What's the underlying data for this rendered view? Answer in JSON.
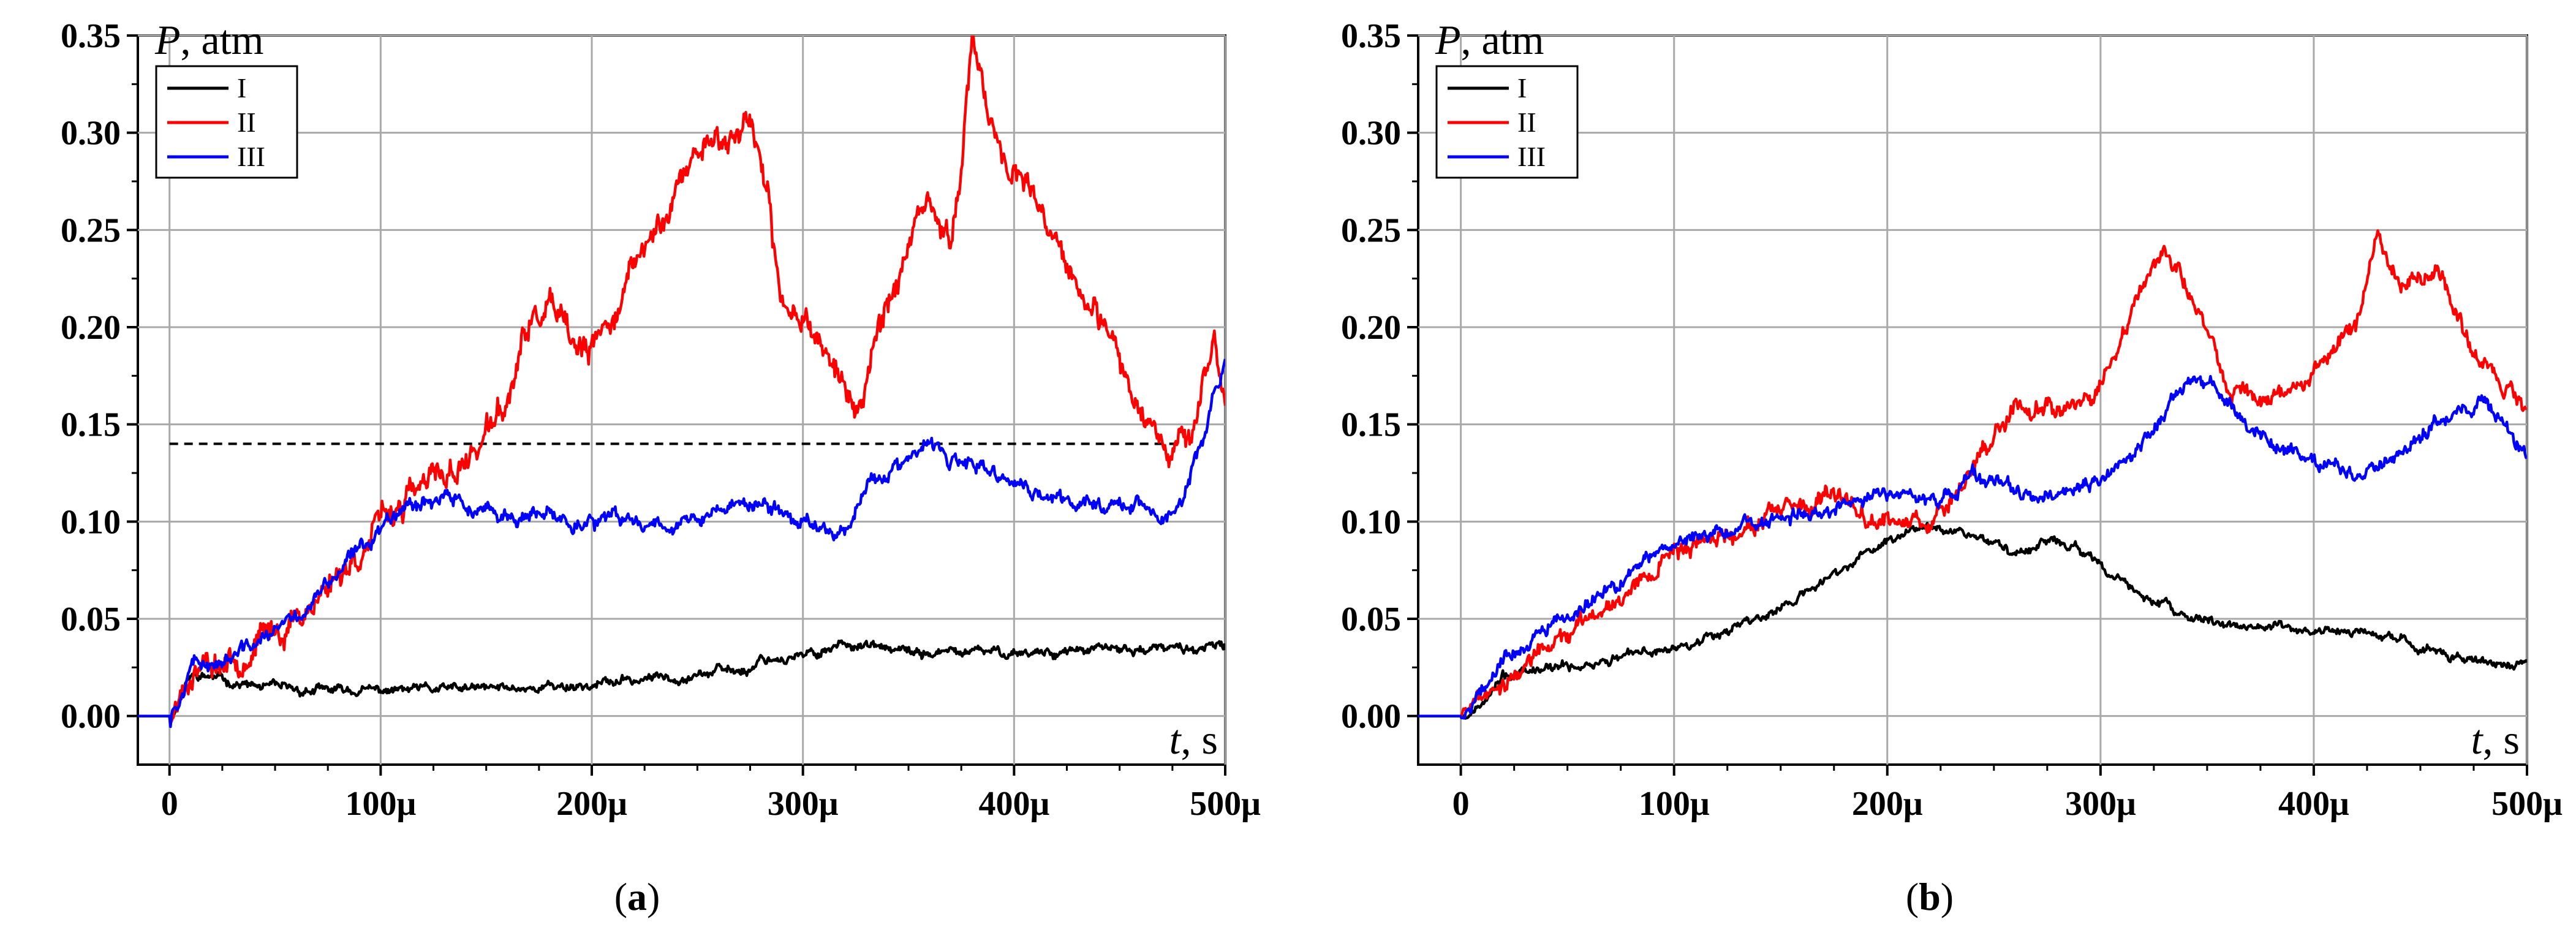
{
  "figure": {
    "panel_labels": [
      "(a)",
      "(b)"
    ]
  },
  "chart_data": [
    {
      "type": "line",
      "panel": "a",
      "ylabel_var": "P",
      "ylabel_unit": ", atm",
      "xlabel_var": "t",
      "xlabel_unit": ", s",
      "xlim": [
        -15,
        500
      ],
      "ylim": [
        -0.025,
        0.35
      ],
      "xticks": [
        0,
        100,
        200,
        300,
        400,
        500
      ],
      "xtick_labels": [
        "0",
        "100μ",
        "200μ",
        "300μ",
        "400μ",
        "500μ"
      ],
      "yticks": [
        0.0,
        0.05,
        0.1,
        0.15,
        0.2,
        0.25,
        0.3,
        0.35
      ],
      "ytick_labels": [
        "0.00",
        "0.05",
        "0.10",
        "0.15",
        "0.20",
        "0.25",
        "0.30",
        "0.35"
      ],
      "grid": true,
      "legend_position": "top-left",
      "reference_line": {
        "y": 0.14,
        "x_range": [
          0,
          480
        ],
        "style": "dashed"
      },
      "series": [
        {
          "name": "I",
          "color": "#000000",
          "noise": 0.0018,
          "seed": 11,
          "x": [
            -15,
            0,
            10,
            20,
            40,
            60,
            80,
            100,
            150,
            200,
            250,
            275,
            280,
            300,
            320,
            330,
            350,
            400,
            450,
            500
          ],
          "y": [
            0.0,
            0.0,
            0.02,
            0.02,
            0.015,
            0.013,
            0.013,
            0.013,
            0.014,
            0.016,
            0.022,
            0.024,
            0.03,
            0.03,
            0.038,
            0.036,
            0.032,
            0.033,
            0.034,
            0.035
          ]
        },
        {
          "name": "II",
          "color": "#ff0000",
          "noise": 0.0055,
          "seed": 23,
          "x": [
            -15,
            0,
            10,
            30,
            60,
            90,
            110,
            140,
            160,
            170,
            180,
            190,
            200,
            220,
            240,
            255,
            265,
            275,
            280,
            290,
            300,
            320,
            325,
            335,
            350,
            360,
            370,
            380,
            385,
            390,
            400,
            420,
            440,
            460,
            475,
            485,
            490,
            495,
            500
          ],
          "y": [
            0.0,
            0.0,
            0.025,
            0.03,
            0.05,
            0.085,
            0.11,
            0.13,
            0.16,
            0.2,
            0.21,
            0.19,
            0.185,
            0.23,
            0.27,
            0.3,
            0.295,
            0.31,
            0.285,
            0.21,
            0.21,
            0.17,
            0.15,
            0.2,
            0.24,
            0.26,
            0.24,
            0.34,
            0.33,
            0.3,
            0.28,
            0.24,
            0.2,
            0.16,
            0.14,
            0.15,
            0.17,
            0.19,
            0.16
          ]
        },
        {
          "name": "III",
          "color": "#0000ff",
          "noise": 0.003,
          "seed": 37,
          "x": [
            -15,
            0,
            10,
            30,
            60,
            90,
            110,
            130,
            150,
            200,
            250,
            270,
            290,
            300,
            320,
            330,
            340,
            350,
            360,
            370,
            380,
            400,
            420,
            440,
            460,
            470,
            480,
            485,
            490,
            495,
            500
          ],
          "y": [
            0.0,
            0.0,
            0.025,
            0.03,
            0.05,
            0.085,
            0.11,
            0.113,
            0.103,
            0.1,
            0.1,
            0.11,
            0.105,
            0.1,
            0.095,
            0.12,
            0.125,
            0.13,
            0.14,
            0.13,
            0.128,
            0.12,
            0.11,
            0.11,
            0.11,
            0.1,
            0.11,
            0.13,
            0.14,
            0.17,
            0.18
          ]
        }
      ]
    },
    {
      "type": "line",
      "panel": "b",
      "ylabel_var": "P",
      "ylabel_unit": ", atm",
      "xlabel_var": "t",
      "xlabel_unit": ", s",
      "xlim": [
        -20,
        500
      ],
      "ylim": [
        -0.025,
        0.35
      ],
      "xticks": [
        0,
        100,
        200,
        300,
        400,
        500
      ],
      "xtick_labels": [
        "0",
        "100μ",
        "200μ",
        "300μ",
        "400μ",
        "500μ"
      ],
      "yticks": [
        0.0,
        0.05,
        0.1,
        0.15,
        0.2,
        0.25,
        0.3,
        0.35
      ],
      "ytick_labels": [
        "0.00",
        "0.05",
        "0.10",
        "0.15",
        "0.20",
        "0.25",
        "0.30",
        "0.35"
      ],
      "grid": true,
      "legend_position": "top-left",
      "series": [
        {
          "name": "I",
          "color": "#000000",
          "noise": 0.0018,
          "seed": 53,
          "x": [
            -20,
            0,
            10,
            20,
            50,
            100,
            150,
            200,
            220,
            250,
            260,
            270,
            290,
            300,
            340,
            380,
            420,
            460,
            490,
            500
          ],
          "y": [
            0.0,
            0.0,
            0.005,
            0.02,
            0.025,
            0.035,
            0.055,
            0.09,
            0.1,
            0.09,
            0.082,
            0.09,
            0.087,
            0.075,
            0.05,
            0.045,
            0.043,
            0.033,
            0.025,
            0.028
          ]
        },
        {
          "name": "II",
          "color": "#ff0000",
          "noise": 0.0035,
          "seed": 67,
          "x": [
            -20,
            0,
            10,
            30,
            60,
            100,
            140,
            180,
            200,
            220,
            240,
            260,
            280,
            300,
            320,
            330,
            340,
            360,
            380,
            400,
            420,
            430,
            440,
            460,
            470,
            480,
            490,
            500
          ],
          "y": [
            0.0,
            0.0,
            0.01,
            0.025,
            0.05,
            0.085,
            0.1,
            0.112,
            0.1,
            0.1,
            0.13,
            0.16,
            0.16,
            0.17,
            0.22,
            0.24,
            0.22,
            0.17,
            0.16,
            0.18,
            0.2,
            0.25,
            0.22,
            0.23,
            0.2,
            0.18,
            0.17,
            0.16
          ]
        },
        {
          "name": "III",
          "color": "#0000ff",
          "noise": 0.0028,
          "seed": 79,
          "x": [
            -20,
            0,
            10,
            20,
            50,
            100,
            150,
            200,
            230,
            240,
            250,
            270,
            290,
            300,
            320,
            340,
            350,
            360,
            380,
            400,
            420,
            440,
            460,
            480,
            490,
            500
          ],
          "y": [
            0.0,
            0.0,
            0.015,
            0.03,
            0.05,
            0.09,
            0.1,
            0.115,
            0.11,
            0.125,
            0.12,
            0.11,
            0.115,
            0.12,
            0.14,
            0.17,
            0.173,
            0.16,
            0.14,
            0.13,
            0.125,
            0.135,
            0.155,
            0.16,
            0.15,
            0.135
          ]
        }
      ]
    }
  ]
}
